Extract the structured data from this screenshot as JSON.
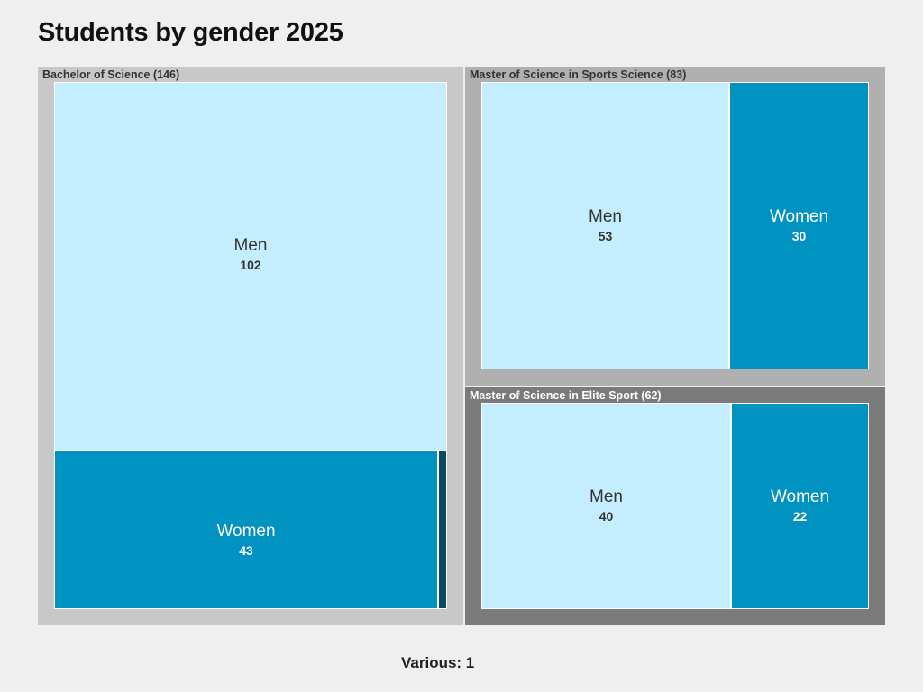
{
  "title": "Students by gender 2025",
  "colors": {
    "men": "#c4eefd",
    "women": "#0092c0",
    "various": "#0a4a63",
    "text_dark": "#333333",
    "text_light": "#ffffff"
  },
  "chart_data": {
    "type": "treemap",
    "title": "Students by gender 2025",
    "groups": [
      {
        "name": "Bachelor of Science",
        "label": "Bachelor of Science (146)",
        "total": 146,
        "frame_color": "#c8c8c8",
        "label_color": "#333333",
        "children": [
          {
            "name": "Men",
            "value": 102
          },
          {
            "name": "Women",
            "value": 43
          },
          {
            "name": "Various",
            "value": 1
          }
        ]
      },
      {
        "name": "Master of Science in Sports Science",
        "label": "Master of Science in Sports Science (83)",
        "total": 83,
        "frame_color": "#b0b0b0",
        "label_color": "#333333",
        "children": [
          {
            "name": "Men",
            "value": 53
          },
          {
            "name": "Women",
            "value": 30
          }
        ]
      },
      {
        "name": "Master of Science in Elite Sport",
        "label": "Master of Science in Elite Sport (62)",
        "total": 62,
        "frame_color": "#7a7a7a",
        "label_color": "#ffffff",
        "children": [
          {
            "name": "Men",
            "value": 40
          },
          {
            "name": "Women",
            "value": 22
          }
        ]
      }
    ],
    "annotations": [
      {
        "text": "Various: 1",
        "group": "Bachelor of Science",
        "category": "Various"
      }
    ]
  }
}
